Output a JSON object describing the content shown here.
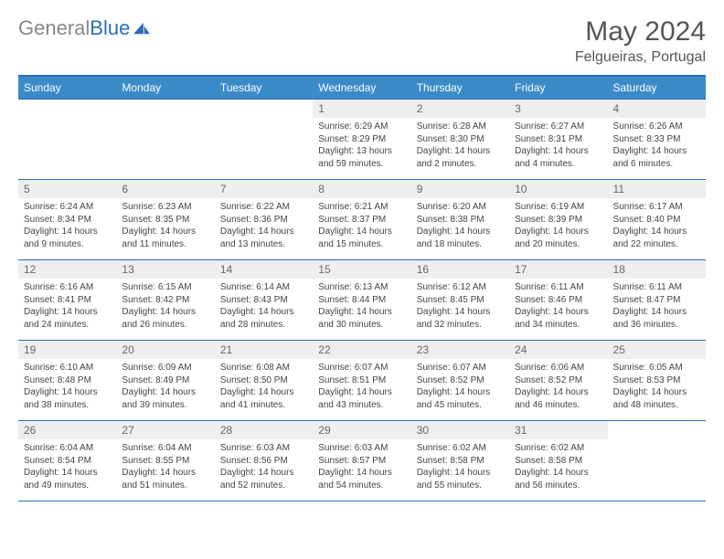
{
  "logo": {
    "text_gray": "General",
    "text_blue": "Blue"
  },
  "title": "May 2024",
  "location": "Felgueiras, Portugal",
  "colors": {
    "header_bg": "#3b8bc9",
    "header_border": "#2a6db8",
    "daynum_bg": "#eceef0",
    "text": "#444"
  },
  "weekdays": [
    "Sunday",
    "Monday",
    "Tuesday",
    "Wednesday",
    "Thursday",
    "Friday",
    "Saturday"
  ],
  "weeks": [
    [
      null,
      null,
      null,
      {
        "n": "1",
        "sr": "Sunrise: 6:29 AM",
        "ss": "Sunset: 8:29 PM",
        "dl": "Daylight: 13 hours and 59 minutes."
      },
      {
        "n": "2",
        "sr": "Sunrise: 6:28 AM",
        "ss": "Sunset: 8:30 PM",
        "dl": "Daylight: 14 hours and 2 minutes."
      },
      {
        "n": "3",
        "sr": "Sunrise: 6:27 AM",
        "ss": "Sunset: 8:31 PM",
        "dl": "Daylight: 14 hours and 4 minutes."
      },
      {
        "n": "4",
        "sr": "Sunrise: 6:26 AM",
        "ss": "Sunset: 8:33 PM",
        "dl": "Daylight: 14 hours and 6 minutes."
      }
    ],
    [
      {
        "n": "5",
        "sr": "Sunrise: 6:24 AM",
        "ss": "Sunset: 8:34 PM",
        "dl": "Daylight: 14 hours and 9 minutes."
      },
      {
        "n": "6",
        "sr": "Sunrise: 6:23 AM",
        "ss": "Sunset: 8:35 PM",
        "dl": "Daylight: 14 hours and 11 minutes."
      },
      {
        "n": "7",
        "sr": "Sunrise: 6:22 AM",
        "ss": "Sunset: 8:36 PM",
        "dl": "Daylight: 14 hours and 13 minutes."
      },
      {
        "n": "8",
        "sr": "Sunrise: 6:21 AM",
        "ss": "Sunset: 8:37 PM",
        "dl": "Daylight: 14 hours and 15 minutes."
      },
      {
        "n": "9",
        "sr": "Sunrise: 6:20 AM",
        "ss": "Sunset: 8:38 PM",
        "dl": "Daylight: 14 hours and 18 minutes."
      },
      {
        "n": "10",
        "sr": "Sunrise: 6:19 AM",
        "ss": "Sunset: 8:39 PM",
        "dl": "Daylight: 14 hours and 20 minutes."
      },
      {
        "n": "11",
        "sr": "Sunrise: 6:17 AM",
        "ss": "Sunset: 8:40 PM",
        "dl": "Daylight: 14 hours and 22 minutes."
      }
    ],
    [
      {
        "n": "12",
        "sr": "Sunrise: 6:16 AM",
        "ss": "Sunset: 8:41 PM",
        "dl": "Daylight: 14 hours and 24 minutes."
      },
      {
        "n": "13",
        "sr": "Sunrise: 6:15 AM",
        "ss": "Sunset: 8:42 PM",
        "dl": "Daylight: 14 hours and 26 minutes."
      },
      {
        "n": "14",
        "sr": "Sunrise: 6:14 AM",
        "ss": "Sunset: 8:43 PM",
        "dl": "Daylight: 14 hours and 28 minutes."
      },
      {
        "n": "15",
        "sr": "Sunrise: 6:13 AM",
        "ss": "Sunset: 8:44 PM",
        "dl": "Daylight: 14 hours and 30 minutes."
      },
      {
        "n": "16",
        "sr": "Sunrise: 6:12 AM",
        "ss": "Sunset: 8:45 PM",
        "dl": "Daylight: 14 hours and 32 minutes."
      },
      {
        "n": "17",
        "sr": "Sunrise: 6:11 AM",
        "ss": "Sunset: 8:46 PM",
        "dl": "Daylight: 14 hours and 34 minutes."
      },
      {
        "n": "18",
        "sr": "Sunrise: 6:11 AM",
        "ss": "Sunset: 8:47 PM",
        "dl": "Daylight: 14 hours and 36 minutes."
      }
    ],
    [
      {
        "n": "19",
        "sr": "Sunrise: 6:10 AM",
        "ss": "Sunset: 8:48 PM",
        "dl": "Daylight: 14 hours and 38 minutes."
      },
      {
        "n": "20",
        "sr": "Sunrise: 6:09 AM",
        "ss": "Sunset: 8:49 PM",
        "dl": "Daylight: 14 hours and 39 minutes."
      },
      {
        "n": "21",
        "sr": "Sunrise: 6:08 AM",
        "ss": "Sunset: 8:50 PM",
        "dl": "Daylight: 14 hours and 41 minutes."
      },
      {
        "n": "22",
        "sr": "Sunrise: 6:07 AM",
        "ss": "Sunset: 8:51 PM",
        "dl": "Daylight: 14 hours and 43 minutes."
      },
      {
        "n": "23",
        "sr": "Sunrise: 6:07 AM",
        "ss": "Sunset: 8:52 PM",
        "dl": "Daylight: 14 hours and 45 minutes."
      },
      {
        "n": "24",
        "sr": "Sunrise: 6:06 AM",
        "ss": "Sunset: 8:52 PM",
        "dl": "Daylight: 14 hours and 46 minutes."
      },
      {
        "n": "25",
        "sr": "Sunrise: 6:05 AM",
        "ss": "Sunset: 8:53 PM",
        "dl": "Daylight: 14 hours and 48 minutes."
      }
    ],
    [
      {
        "n": "26",
        "sr": "Sunrise: 6:04 AM",
        "ss": "Sunset: 8:54 PM",
        "dl": "Daylight: 14 hours and 49 minutes."
      },
      {
        "n": "27",
        "sr": "Sunrise: 6:04 AM",
        "ss": "Sunset: 8:55 PM",
        "dl": "Daylight: 14 hours and 51 minutes."
      },
      {
        "n": "28",
        "sr": "Sunrise: 6:03 AM",
        "ss": "Sunset: 8:56 PM",
        "dl": "Daylight: 14 hours and 52 minutes."
      },
      {
        "n": "29",
        "sr": "Sunrise: 6:03 AM",
        "ss": "Sunset: 8:57 PM",
        "dl": "Daylight: 14 hours and 54 minutes."
      },
      {
        "n": "30",
        "sr": "Sunrise: 6:02 AM",
        "ss": "Sunset: 8:58 PM",
        "dl": "Daylight: 14 hours and 55 minutes."
      },
      {
        "n": "31",
        "sr": "Sunrise: 6:02 AM",
        "ss": "Sunset: 8:58 PM",
        "dl": "Daylight: 14 hours and 56 minutes."
      },
      null
    ]
  ]
}
